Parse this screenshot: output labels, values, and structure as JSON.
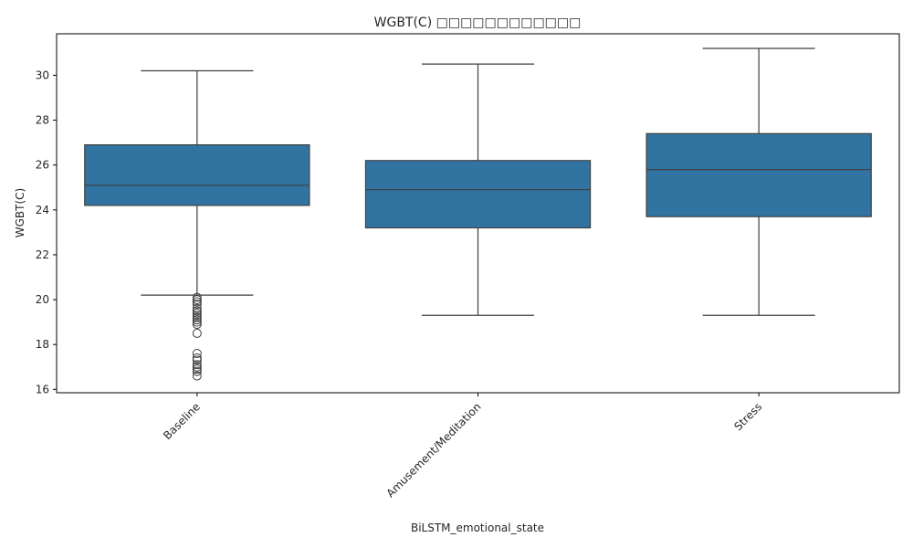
{
  "chart_data": {
    "type": "box",
    "title": "WGBT(C) □□□□□□□□□□□□",
    "xlabel": "BiLSTM_emotional_state",
    "ylabel": "WGBT(C)",
    "ylim": [
      15.85,
      31.85
    ],
    "yticks": [
      16,
      18,
      20,
      22,
      24,
      26,
      28,
      30
    ],
    "grid": false,
    "box_color": "#3274a1",
    "line_color": "#3f3f3f",
    "categories": [
      "Baseline",
      "Amusement/Meditation",
      "Stress"
    ],
    "boxes": [
      {
        "category": "Baseline",
        "whisker_low": 20.2,
        "q1": 24.2,
        "median": 25.1,
        "q3": 26.9,
        "whisker_high": 30.2,
        "outliers": [
          20.1,
          20.0,
          19.9,
          19.8,
          19.6,
          19.5,
          19.4,
          19.3,
          19.2,
          19.1,
          19.0,
          18.9,
          18.5,
          17.6,
          17.4,
          17.3,
          17.1,
          17.0,
          16.9,
          16.8,
          16.6
        ]
      },
      {
        "category": "Amusement/Meditation",
        "whisker_low": 19.3,
        "q1": 23.2,
        "median": 24.9,
        "q3": 26.2,
        "whisker_high": 30.5,
        "outliers": []
      },
      {
        "category": "Stress",
        "whisker_low": 19.3,
        "q1": 23.7,
        "median": 25.8,
        "q3": 27.4,
        "whisker_high": 31.2,
        "outliers": []
      }
    ]
  }
}
